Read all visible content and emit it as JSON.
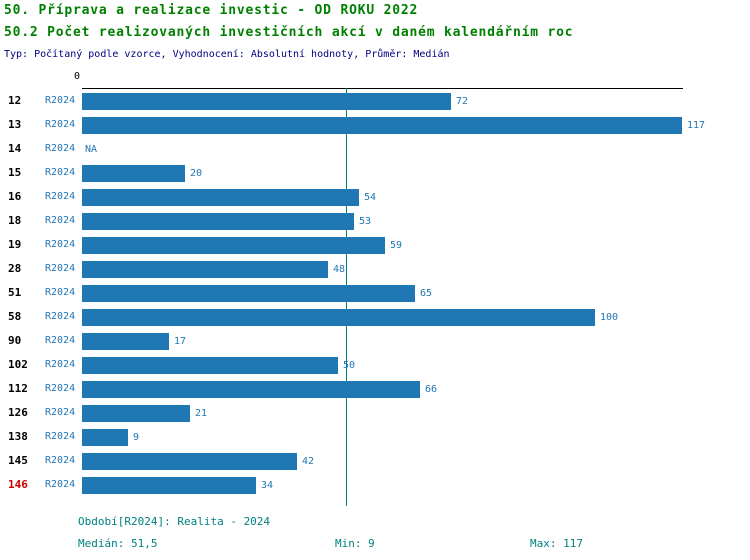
{
  "header": {
    "title": "50. Příprava a realizace investic - OD ROKU 2022",
    "subtitle": "50.2 Počet realizovaných investičních akcí v daném kalendářním roc",
    "meta": "Typ: Počítaný podle vzorce, Vyhodnocení: Absolutní hodnoty, Průměr: Medián"
  },
  "axis": {
    "zero_label": "0"
  },
  "chart_data": {
    "type": "bar",
    "orientation": "horizontal",
    "title": "50.2 Počet realizovaných investičních akcí v daném kalendářním roc",
    "categories": [
      "12",
      "13",
      "14",
      "15",
      "16",
      "18",
      "19",
      "28",
      "51",
      "58",
      "90",
      "102",
      "112",
      "126",
      "138",
      "145",
      "146"
    ],
    "series": [
      {
        "name": "R2024",
        "values": [
          72,
          117,
          null,
          20,
          54,
          53,
          59,
          48,
          65,
          100,
          17,
          50,
          66,
          21,
          9,
          42,
          34
        ]
      }
    ],
    "na_label": "NA",
    "xlim": [
      0,
      117
    ],
    "median": 51.5,
    "highlight_category": "146",
    "grid": false,
    "legend": "none",
    "colors": {
      "bar": "#1F77B4",
      "median_line": "#008080",
      "highlight_category": "#CC0000",
      "title": "#008000",
      "meta": "#000080",
      "footer": "#008080"
    }
  },
  "footer": {
    "period": "Období[R2024]: Realita - 2024",
    "median": "Medián: 51,5",
    "min": "Min: 9",
    "max": "Max: 117"
  }
}
